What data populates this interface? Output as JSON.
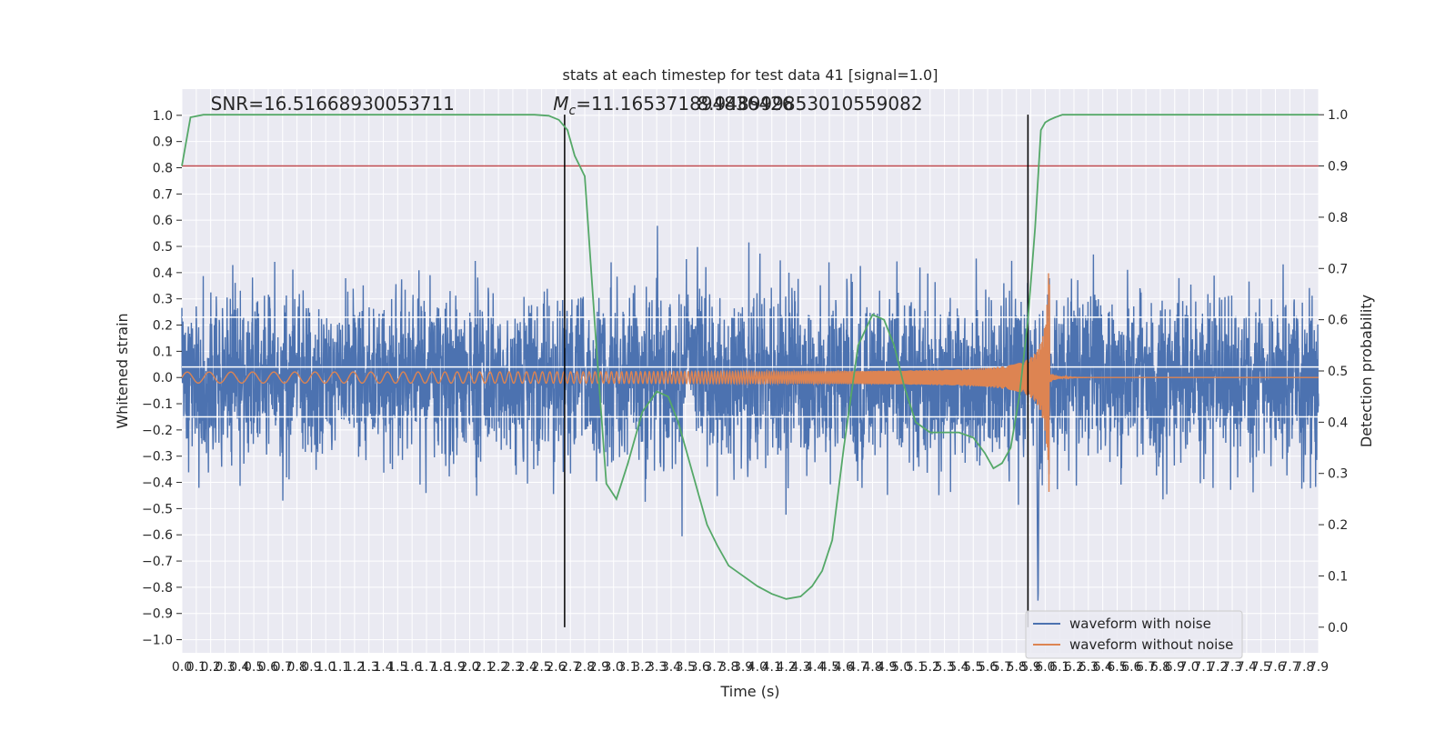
{
  "chart_data": {
    "type": "line",
    "title": "stats at each timestep for test data 41 [signal=1.0]",
    "xlabel": "Time (s)",
    "ylabel": "Whitened strain",
    "ylabel_right": "Detection probability",
    "xlim": [
      0,
      7.9
    ],
    "ylim": [
      -1.05,
      1.1
    ],
    "ylim_right": [
      -0.05,
      1.05
    ],
    "x_ticks": [
      0.0,
      0.1,
      0.2,
      0.3,
      0.4,
      0.5,
      0.6,
      0.7,
      0.8,
      0.9,
      1.0,
      1.1,
      1.2,
      1.3,
      1.4,
      1.5,
      1.6,
      1.7,
      1.8,
      1.9,
      2.0,
      2.1,
      2.2,
      2.3,
      2.4,
      2.5,
      2.6,
      2.7,
      2.8,
      2.9,
      3.0,
      3.1,
      3.2,
      3.3,
      3.4,
      3.5,
      3.6,
      3.7,
      3.8,
      3.9,
      4.0,
      4.1,
      4.2,
      4.3,
      4.4,
      4.5,
      4.6,
      4.7,
      4.8,
      4.9,
      5.0,
      5.1,
      5.2,
      5.3,
      5.4,
      5.5,
      5.6,
      5.7,
      5.8,
      5.9,
      6.0,
      6.1,
      6.2,
      6.3,
      6.4,
      6.5,
      6.6,
      6.7,
      6.8,
      6.9,
      7.0,
      7.1,
      7.2,
      7.3,
      7.4,
      7.5,
      7.6,
      7.7,
      7.8,
      7.9
    ],
    "y_ticks": [
      -1.0,
      -0.9,
      -0.8,
      -0.7,
      -0.6,
      -0.5,
      -0.4,
      -0.3,
      -0.2,
      -0.1,
      0.0,
      0.1,
      0.2,
      0.3,
      0.4,
      0.5,
      0.6,
      0.7,
      0.8,
      0.9,
      1.0
    ],
    "y_ticks_right": [
      0.0,
      0.1,
      0.2,
      0.3,
      0.4,
      0.5,
      0.6,
      0.7,
      0.8,
      0.9,
      1.0
    ],
    "grid": true,
    "legend_position": "bottom-right",
    "series": [
      {
        "name": "waveform with noise",
        "color": "#4c72b0",
        "noise_sd": 0.16,
        "noise_peak": 0.76,
        "merger_peak_x": 5.95,
        "merger_peak_y": -0.9
      },
      {
        "name": "waveform without noise",
        "color": "#dd8452",
        "start_x": 0.0,
        "merger_x": 6.03,
        "amp_start": 0.02,
        "amp_merger": 0.55,
        "amp_min_merger": -0.48,
        "start_freq_hz": 12,
        "merger_freq_hz": 90
      }
    ],
    "detection_probability": {
      "color": "#55a868",
      "x": [
        0.0,
        0.06,
        0.15,
        0.3,
        1.0,
        2.0,
        2.45,
        2.55,
        2.62,
        2.68,
        2.73,
        2.8,
        2.88,
        2.95,
        3.02,
        3.1,
        3.2,
        3.3,
        3.38,
        3.45,
        3.55,
        3.65,
        3.72,
        3.8,
        3.9,
        4.0,
        4.1,
        4.2,
        4.3,
        4.38,
        4.45,
        4.52,
        4.6,
        4.7,
        4.8,
        4.88,
        4.95,
        5.02,
        5.1,
        5.2,
        5.3,
        5.4,
        5.5,
        5.58,
        5.64,
        5.7,
        5.76,
        5.82,
        5.88,
        5.93,
        5.97,
        6.0,
        6.03,
        6.07,
        6.12,
        6.2,
        6.4,
        7.0,
        7.9
      ],
      "y": [
        0.9,
        0.995,
        1.0,
        1.0,
        1.0,
        1.0,
        1.0,
        0.998,
        0.99,
        0.97,
        0.92,
        0.88,
        0.55,
        0.28,
        0.25,
        0.32,
        0.42,
        0.46,
        0.45,
        0.4,
        0.3,
        0.2,
        0.16,
        0.12,
        0.1,
        0.08,
        0.065,
        0.055,
        0.06,
        0.08,
        0.11,
        0.17,
        0.35,
        0.55,
        0.61,
        0.6,
        0.55,
        0.47,
        0.4,
        0.38,
        0.38,
        0.38,
        0.37,
        0.34,
        0.31,
        0.32,
        0.35,
        0.45,
        0.6,
        0.78,
        0.97,
        0.985,
        0.99,
        0.995,
        1.0,
        1.0,
        1.0,
        1.0,
        1.0
      ]
    },
    "threshold": {
      "value": 0.9,
      "axis": "right",
      "color": "#c44e52"
    },
    "vlines": [
      2.66,
      5.88
    ],
    "hlines_white": [
      0.23,
      0.04,
      -0.15
    ],
    "annotations": [
      {
        "text": "SNR=16.51668930053711",
        "x": 0.2,
        "y": 1.02
      },
      {
        "text": "M",
        "sub": "c",
        "rest": "=11.165371894836426",
        "x": 2.58,
        "y": 1.02
      },
      {
        "text": "8.948999853010559082",
        "x": 3.58,
        "y": 1.02
      }
    ]
  }
}
